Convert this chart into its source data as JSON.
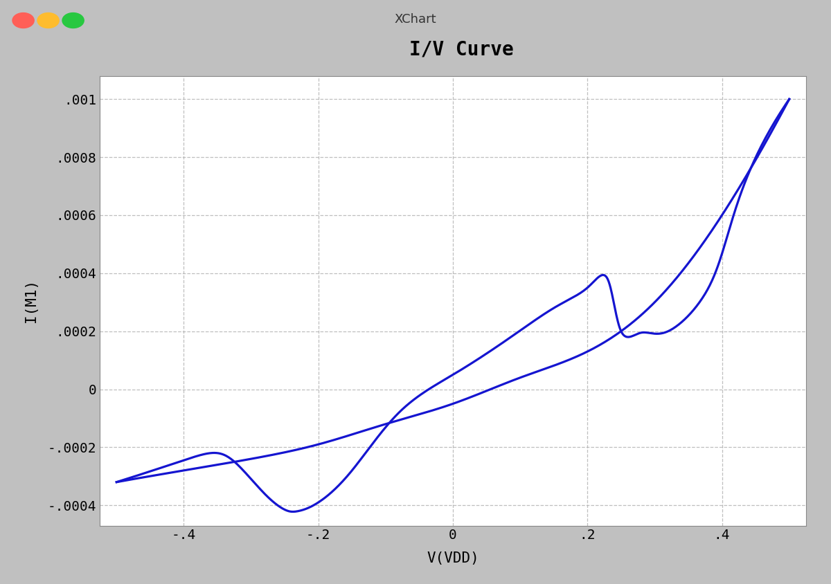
{
  "title": "I/V Curve",
  "xlabel": "V(VDD)",
  "ylabel": "I(M1)",
  "xlim": [
    -0.525,
    0.525
  ],
  "ylim": [
    -0.00047,
    0.00108
  ],
  "xticks": [
    -0.4,
    -0.2,
    0.0,
    0.2,
    0.4
  ],
  "yticks": [
    -0.0004,
    -0.0002,
    0.0,
    0.0002,
    0.0004,
    0.0006,
    0.0008,
    0.001
  ],
  "ytick_labels": [
    ".0004",
    ".0002",
    "0",
    ".0002",
    ".0004",
    ".0006",
    ".0008",
    ".001"
  ],
  "xtick_labels": [
    ".4",
    ".2",
    "0",
    ".2",
    ".4"
  ],
  "line_color": "#1515d0",
  "line_width": 2.3,
  "bg_color": "#c0c0c0",
  "plot_bg_color": "#ffffff",
  "title_fontsize": 20,
  "label_fontsize": 15,
  "tick_fontsize": 14,
  "window_title": "XChart",
  "grid_color": "#b0b0b0",
  "grid_style": "--",
  "grid_alpha": 0.8,
  "path1_x": [
    -0.5,
    -0.4,
    -0.3,
    -0.2,
    -0.1,
    0.0,
    0.1,
    0.2,
    0.3,
    0.4,
    0.5
  ],
  "path1_y": [
    -0.00032,
    -0.00028,
    -0.00024,
    -0.00019,
    -0.00012,
    -5e-05,
    4e-05,
    0.00013,
    0.0003,
    0.0006,
    0.001
  ],
  "path2_x": [
    -0.5,
    -0.42,
    -0.38,
    -0.35,
    -0.32,
    -0.28,
    -0.25,
    -0.23,
    -0.2,
    -0.15,
    -0.08,
    0.0,
    0.08,
    0.15,
    0.2,
    0.23,
    0.25,
    0.28,
    0.32,
    0.38,
    0.42,
    0.5
  ],
  "path2_y": [
    -0.00032,
    -0.00026,
    -0.00023,
    -0.00022,
    -0.00026,
    -0.00036,
    -0.000415,
    -0.00042,
    -0.00039,
    -0.00028,
    -8e-05,
    5e-05,
    0.00017,
    0.00028,
    0.00035,
    0.00038,
    0.0002,
    0.000195,
    0.0002,
    0.00035,
    0.00062,
    0.001
  ]
}
